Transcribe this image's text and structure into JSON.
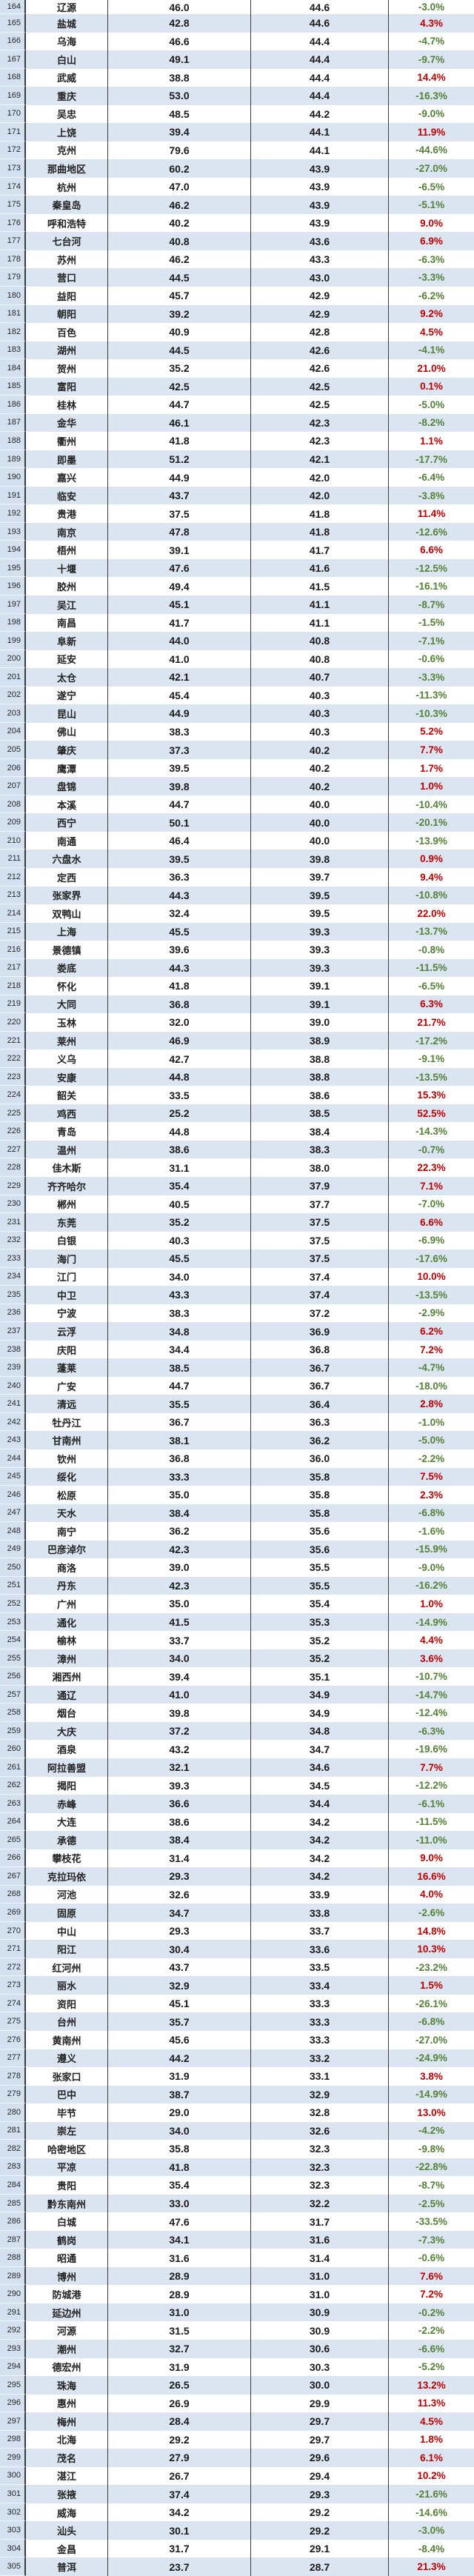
{
  "table": {
    "description": "spreadsheet-region",
    "columns": [
      "row_number",
      "city",
      "value_a",
      "value_b",
      "change_percent"
    ],
    "colors": {
      "positive_change": "#c00000",
      "negative_change": "#538135",
      "stripe_blue": "#dbe5f1",
      "stripe_white": "#ffffff",
      "row_header_bg": "#d2e0f0",
      "grid_line": "#3b3b3b",
      "value_text": "#1a1a1a"
    },
    "rows": [
      [
        "164",
        "辽源",
        "46.0",
        "44.6",
        "-3.0%"
      ],
      [
        "165",
        "盐城",
        "42.8",
        "44.6",
        "4.3%"
      ],
      [
        "166",
        "乌海",
        "46.6",
        "44.4",
        "-4.7%"
      ],
      [
        "167",
        "白山",
        "49.1",
        "44.4",
        "-9.7%"
      ],
      [
        "168",
        "武威",
        "38.8",
        "44.4",
        "14.4%"
      ],
      [
        "169",
        "重庆",
        "53.0",
        "44.4",
        "-16.3%"
      ],
      [
        "170",
        "吴忠",
        "48.5",
        "44.2",
        "-9.0%"
      ],
      [
        "171",
        "上饶",
        "39.4",
        "44.1",
        "11.9%"
      ],
      [
        "172",
        "克州",
        "79.6",
        "44.1",
        "-44.6%"
      ],
      [
        "173",
        "那曲地区",
        "60.2",
        "43.9",
        "-27.0%"
      ],
      [
        "174",
        "杭州",
        "47.0",
        "43.9",
        "-6.5%"
      ],
      [
        "175",
        "秦皇岛",
        "46.2",
        "43.9",
        "-5.1%"
      ],
      [
        "176",
        "呼和浩特",
        "40.2",
        "43.9",
        "9.0%"
      ],
      [
        "177",
        "七台河",
        "40.8",
        "43.6",
        "6.9%"
      ],
      [
        "178",
        "苏州",
        "46.2",
        "43.3",
        "-6.3%"
      ],
      [
        "179",
        "营口",
        "44.5",
        "43.0",
        "-3.3%"
      ],
      [
        "180",
        "益阳",
        "45.7",
        "42.9",
        "-6.2%"
      ],
      [
        "181",
        "朝阳",
        "39.2",
        "42.9",
        "9.2%"
      ],
      [
        "182",
        "百色",
        "40.9",
        "42.8",
        "4.5%"
      ],
      [
        "183",
        "湖州",
        "44.5",
        "42.6",
        "-4.1%"
      ],
      [
        "184",
        "贺州",
        "35.2",
        "42.6",
        "21.0%"
      ],
      [
        "185",
        "富阳",
        "42.5",
        "42.5",
        "0.1%"
      ],
      [
        "186",
        "桂林",
        "44.7",
        "42.5",
        "-5.0%"
      ],
      [
        "187",
        "金华",
        "46.1",
        "42.3",
        "-8.2%"
      ],
      [
        "188",
        "衢州",
        "41.8",
        "42.3",
        "1.1%"
      ],
      [
        "189",
        "即墨",
        "51.2",
        "42.1",
        "-17.7%"
      ],
      [
        "190",
        "嘉兴",
        "44.9",
        "42.0",
        "-6.4%"
      ],
      [
        "191",
        "临安",
        "43.7",
        "42.0",
        "-3.8%"
      ],
      [
        "192",
        "贵港",
        "37.5",
        "41.8",
        "11.4%"
      ],
      [
        "193",
        "南京",
        "47.8",
        "41.8",
        "-12.6%"
      ],
      [
        "194",
        "梧州",
        "39.1",
        "41.7",
        "6.6%"
      ],
      [
        "195",
        "十堰",
        "47.6",
        "41.6",
        "-12.5%"
      ],
      [
        "196",
        "胶州",
        "49.4",
        "41.5",
        "-16.1%"
      ],
      [
        "197",
        "吴江",
        "45.1",
        "41.1",
        "-8.7%"
      ],
      [
        "198",
        "南昌",
        "41.7",
        "41.1",
        "-1.5%"
      ],
      [
        "199",
        "阜新",
        "44.0",
        "40.8",
        "-7.1%"
      ],
      [
        "200",
        "延安",
        "41.0",
        "40.8",
        "-0.6%"
      ],
      [
        "201",
        "太仓",
        "42.1",
        "40.7",
        "-3.3%"
      ],
      [
        "202",
        "遂宁",
        "45.4",
        "40.3",
        "-11.3%"
      ],
      [
        "203",
        "昆山",
        "44.9",
        "40.3",
        "-10.3%"
      ],
      [
        "204",
        "佛山",
        "38.3",
        "40.3",
        "5.2%"
      ],
      [
        "205",
        "肇庆",
        "37.3",
        "40.2",
        "7.7%"
      ],
      [
        "206",
        "鹰潭",
        "39.5",
        "40.2",
        "1.7%"
      ],
      [
        "207",
        "盘锦",
        "39.8",
        "40.2",
        "1.0%"
      ],
      [
        "208",
        "本溪",
        "44.7",
        "40.0",
        "-10.4%"
      ],
      [
        "209",
        "西宁",
        "50.1",
        "40.0",
        "-20.1%"
      ],
      [
        "210",
        "南通",
        "46.4",
        "40.0",
        "-13.9%"
      ],
      [
        "211",
        "六盘水",
        "39.5",
        "39.8",
        "0.9%"
      ],
      [
        "212",
        "定西",
        "36.3",
        "39.7",
        "9.4%"
      ],
      [
        "213",
        "张家界",
        "44.3",
        "39.5",
        "-10.8%"
      ],
      [
        "214",
        "双鸭山",
        "32.4",
        "39.5",
        "22.0%"
      ],
      [
        "215",
        "上海",
        "45.5",
        "39.3",
        "-13.7%"
      ],
      [
        "216",
        "景德镇",
        "39.6",
        "39.3",
        "-0.8%"
      ],
      [
        "217",
        "娄底",
        "44.3",
        "39.3",
        "-11.5%"
      ],
      [
        "218",
        "怀化",
        "41.8",
        "39.1",
        "-6.5%"
      ],
      [
        "219",
        "大同",
        "36.8",
        "39.1",
        "6.3%"
      ],
      [
        "220",
        "玉林",
        "32.0",
        "39.0",
        "21.7%"
      ],
      [
        "221",
        "莱州",
        "46.9",
        "38.9",
        "-17.2%"
      ],
      [
        "222",
        "义乌",
        "42.7",
        "38.8",
        "-9.1%"
      ],
      [
        "223",
        "安康",
        "44.8",
        "38.8",
        "-13.5%"
      ],
      [
        "224",
        "韶关",
        "33.5",
        "38.6",
        "15.3%"
      ],
      [
        "225",
        "鸡西",
        "25.2",
        "38.5",
        "52.5%"
      ],
      [
        "226",
        "青岛",
        "44.8",
        "38.4",
        "-14.3%"
      ],
      [
        "227",
        "温州",
        "38.6",
        "38.3",
        "-0.7%"
      ],
      [
        "228",
        "佳木斯",
        "31.1",
        "38.0",
        "22.3%"
      ],
      [
        "229",
        "齐齐哈尔",
        "35.4",
        "37.9",
        "7.1%"
      ],
      [
        "230",
        "郴州",
        "40.5",
        "37.7",
        "-7.0%"
      ],
      [
        "231",
        "东莞",
        "35.2",
        "37.5",
        "6.6%"
      ],
      [
        "232",
        "白银",
        "40.3",
        "37.5",
        "-6.9%"
      ],
      [
        "233",
        "海门",
        "45.5",
        "37.5",
        "-17.6%"
      ],
      [
        "234",
        "江门",
        "34.0",
        "37.4",
        "10.0%"
      ],
      [
        "235",
        "中卫",
        "43.3",
        "37.4",
        "-13.5%"
      ],
      [
        "236",
        "宁波",
        "38.3",
        "37.2",
        "-2.9%"
      ],
      [
        "237",
        "云浮",
        "34.8",
        "36.9",
        "6.2%"
      ],
      [
        "238",
        "庆阳",
        "34.4",
        "36.8",
        "7.2%"
      ],
      [
        "239",
        "蓬莱",
        "38.5",
        "36.7",
        "-4.7%"
      ],
      [
        "240",
        "广安",
        "44.7",
        "36.7",
        "-18.0%"
      ],
      [
        "241",
        "清远",
        "35.5",
        "36.4",
        "2.8%"
      ],
      [
        "242",
        "牡丹江",
        "36.7",
        "36.3",
        "-1.0%"
      ],
      [
        "243",
        "甘南州",
        "38.1",
        "36.2",
        "-5.0%"
      ],
      [
        "244",
        "钦州",
        "36.8",
        "36.0",
        "-2.2%"
      ],
      [
        "245",
        "绥化",
        "33.3",
        "35.8",
        "7.5%"
      ],
      [
        "246",
        "松原",
        "35.0",
        "35.8",
        "2.3%"
      ],
      [
        "247",
        "天水",
        "38.4",
        "35.8",
        "-6.8%"
      ],
      [
        "248",
        "南宁",
        "36.2",
        "35.6",
        "-1.6%"
      ],
      [
        "249",
        "巴彦淖尔",
        "42.3",
        "35.6",
        "-15.9%"
      ],
      [
        "250",
        "商洛",
        "39.0",
        "35.5",
        "-9.0%"
      ],
      [
        "251",
        "丹东",
        "42.3",
        "35.5",
        "-16.2%"
      ],
      [
        "252",
        "广州",
        "35.0",
        "35.4",
        "1.0%"
      ],
      [
        "253",
        "通化",
        "41.5",
        "35.3",
        "-14.9%"
      ],
      [
        "254",
        "榆林",
        "33.7",
        "35.2",
        "4.4%"
      ],
      [
        "255",
        "漳州",
        "34.0",
        "35.2",
        "3.6%"
      ],
      [
        "256",
        "湘西州",
        "39.4",
        "35.1",
        "-10.7%"
      ],
      [
        "257",
        "通辽",
        "41.0",
        "34.9",
        "-14.7%"
      ],
      [
        "258",
        "烟台",
        "39.8",
        "34.9",
        "-12.4%"
      ],
      [
        "259",
        "大庆",
        "37.2",
        "34.8",
        "-6.3%"
      ],
      [
        "260",
        "酒泉",
        "43.2",
        "34.7",
        "-19.6%"
      ],
      [
        "261",
        "阿拉善盟",
        "32.1",
        "34.6",
        "7.7%"
      ],
      [
        "262",
        "揭阳",
        "39.3",
        "34.5",
        "-12.2%"
      ],
      [
        "263",
        "赤峰",
        "36.6",
        "34.4",
        "-6.1%"
      ],
      [
        "264",
        "大连",
        "38.6",
        "34.2",
        "-11.5%"
      ],
      [
        "265",
        "承德",
        "38.4",
        "34.2",
        "-11.0%"
      ],
      [
        "266",
        "攀枝花",
        "31.4",
        "34.2",
        "9.0%"
      ],
      [
        "267",
        "克拉玛依",
        "29.3",
        "34.2",
        "16.6%"
      ],
      [
        "268",
        "河池",
        "32.6",
        "33.9",
        "4.0%"
      ],
      [
        "269",
        "固原",
        "34.7",
        "33.8",
        "-2.6%"
      ],
      [
        "270",
        "中山",
        "29.3",
        "33.7",
        "14.8%"
      ],
      [
        "271",
        "阳江",
        "30.4",
        "33.6",
        "10.3%"
      ],
      [
        "272",
        "红河州",
        "43.7",
        "33.5",
        "-23.2%"
      ],
      [
        "273",
        "丽水",
        "32.9",
        "33.4",
        "1.5%"
      ],
      [
        "274",
        "资阳",
        "45.1",
        "33.3",
        "-26.1%"
      ],
      [
        "275",
        "台州",
        "35.7",
        "33.3",
        "-6.8%"
      ],
      [
        "276",
        "黄南州",
        "45.6",
        "33.3",
        "-27.0%"
      ],
      [
        "277",
        "遵义",
        "44.2",
        "33.2",
        "-24.9%"
      ],
      [
        "278",
        "张家口",
        "31.9",
        "33.1",
        "3.8%"
      ],
      [
        "279",
        "巴中",
        "38.7",
        "32.9",
        "-14.9%"
      ],
      [
        "280",
        "毕节",
        "29.0",
        "32.8",
        "13.0%"
      ],
      [
        "281",
        "崇左",
        "34.0",
        "32.6",
        "-4.2%"
      ],
      [
        "282",
        "哈密地区",
        "35.8",
        "32.3",
        "-9.8%"
      ],
      [
        "283",
        "平凉",
        "41.8",
        "32.3",
        "-22.8%"
      ],
      [
        "284",
        "贵阳",
        "35.4",
        "32.3",
        "-8.7%"
      ],
      [
        "285",
        "黔东南州",
        "33.0",
        "32.2",
        "-2.5%"
      ],
      [
        "286",
        "白城",
        "47.6",
        "31.7",
        "-33.5%"
      ],
      [
        "287",
        "鹤岗",
        "34.1",
        "31.6",
        "-7.3%"
      ],
      [
        "288",
        "昭通",
        "31.6",
        "31.4",
        "-0.6%"
      ],
      [
        "289",
        "博州",
        "28.9",
        "31.0",
        "7.6%"
      ],
      [
        "290",
        "防城港",
        "28.9",
        "31.0",
        "7.2%"
      ],
      [
        "291",
        "延边州",
        "31.0",
        "30.9",
        "-0.2%"
      ],
      [
        "292",
        "河源",
        "31.5",
        "30.9",
        "-2.2%"
      ],
      [
        "293",
        "潮州",
        "32.7",
        "30.6",
        "-6.6%"
      ],
      [
        "294",
        "德宏州",
        "31.9",
        "30.3",
        "-5.2%"
      ],
      [
        "295",
        "珠海",
        "26.5",
        "30.0",
        "13.2%"
      ],
      [
        "296",
        "惠州",
        "26.9",
        "29.9",
        "11.3%"
      ],
      [
        "297",
        "梅州",
        "28.4",
        "29.7",
        "4.5%"
      ],
      [
        "298",
        "北海",
        "29.2",
        "29.7",
        "1.8%"
      ],
      [
        "299",
        "茂名",
        "27.9",
        "29.6",
        "6.1%"
      ],
      [
        "300",
        "湛江",
        "26.7",
        "29.4",
        "10.2%"
      ],
      [
        "301",
        "张掖",
        "37.4",
        "29.3",
        "-21.6%"
      ],
      [
        "302",
        "威海",
        "34.2",
        "29.2",
        "-14.6%"
      ],
      [
        "303",
        "汕头",
        "30.1",
        "29.2",
        "-3.0%"
      ],
      [
        "304",
        "金昌",
        "31.7",
        "29.1",
        "-8.4%"
      ],
      [
        "305",
        "普洱",
        "23.7",
        "28.7",
        "21.3%"
      ]
    ]
  }
}
